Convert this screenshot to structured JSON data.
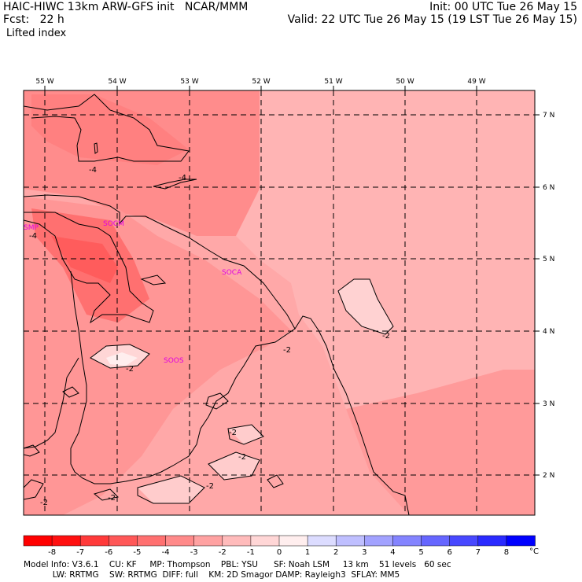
{
  "header": {
    "title": "HAIC-HIWC 13km ARW-GFS init   NCAR/MMM",
    "forecast": "Fcst:   22 h",
    "field": "Lifted index",
    "init": "Init: 00 UTC Tue 26 May 15",
    "valid": "Valid: 22 UTC Tue 26 May 15 (19 LST Tue 26 May 15)"
  },
  "map": {
    "lon_labels": [
      "55 W",
      "54 W",
      "53 W",
      "52 W",
      "51 W",
      "50 W",
      "49 W"
    ],
    "lat_labels": [
      "7 N",
      "6 N",
      "5 N",
      "4 N",
      "3 N",
      "2 N"
    ],
    "stations": [
      "SMP",
      "SOCM",
      "SOCA",
      "SOOS"
    ],
    "contour_labels": [
      "-4",
      "-4",
      "-4",
      "-2",
      "-2",
      "-2",
      "-2",
      "-2",
      "-2",
      "-2",
      "-2"
    ]
  },
  "legend": {
    "labels": [
      "-8",
      "-7",
      "-6",
      "-5",
      "-4",
      "-3",
      "-2",
      "-1",
      "0",
      "1",
      "2",
      "3",
      "4",
      "5",
      "6",
      "7",
      "8"
    ],
    "unit": "°C",
    "colors": [
      "#ff1010",
      "#ff3a3a",
      "#ff5858",
      "#ff7070",
      "#ff8a8a",
      "#ffa2a2",
      "#ffbbbb",
      "#ffd6d6",
      "#ffeeee",
      "#dcdcff",
      "#bfbfff",
      "#a2a2ff",
      "#8484ff",
      "#6666ff",
      "#4848ff",
      "#2a2aff",
      "#0000ff"
    ]
  },
  "footer": {
    "line1": "Model Info: V3.6.1    CU: KF     MP: Thompson    PBL: YSU      SF: Noah LSM     13 km    51 levels   60 sec",
    "line2": "           LW: RRTMG    SW: RRTMG  DIFF: full    KM: 2D Smagor DAMP: Rayleigh3  SFLAY: MM5"
  }
}
